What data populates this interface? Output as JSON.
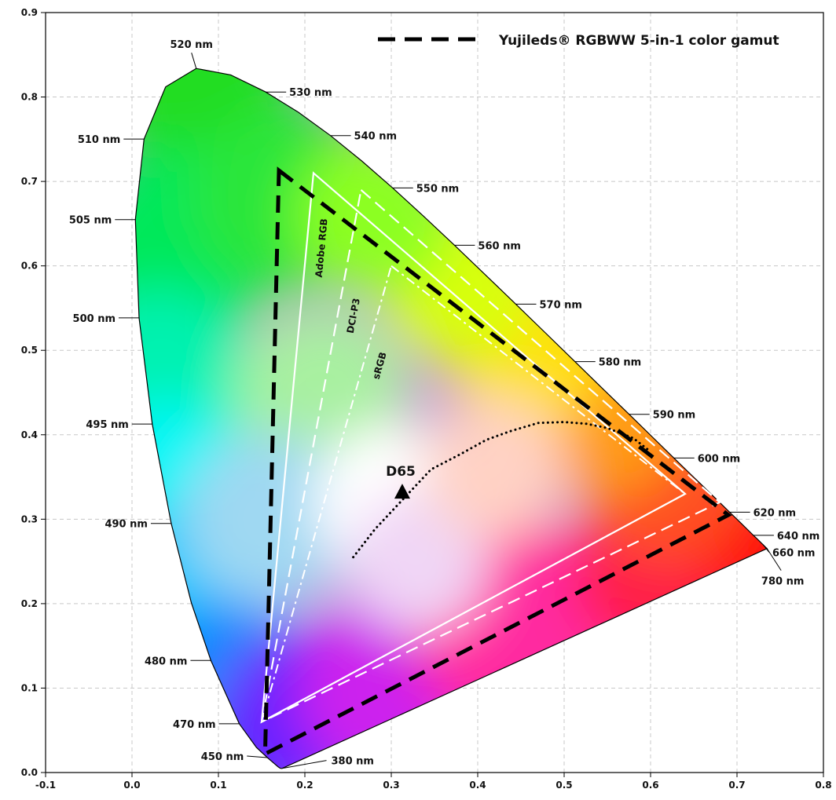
{
  "chart_data": {
    "type": "scatter",
    "title": "",
    "xlabel": "",
    "ylabel": "",
    "xlim": [
      -0.1,
      0.8
    ],
    "ylim": [
      0.0,
      0.9
    ],
    "grid": true,
    "legend_position": "top-right",
    "x_ticks": [
      "-0.1",
      "0.0",
      "0.1",
      "0.2",
      "0.3",
      "0.4",
      "0.5",
      "0.6",
      "0.7",
      "0.8"
    ],
    "y_ticks": [
      "0.0",
      "0.1",
      "0.2",
      "0.3",
      "0.4",
      "0.5",
      "0.6",
      "0.7",
      "0.8",
      "0.9"
    ],
    "legend": {
      "label": "Yujileds® RGBWW 5-in-1 color gamut",
      "line_color": "#000000",
      "line_style": "dashed"
    },
    "spectral_locus": [
      {
        "x": 0.1741,
        "y": 0.005
      },
      {
        "x": 0.1738,
        "y": 0.0049
      },
      {
        "x": 0.1733,
        "y": 0.0048
      },
      {
        "x": 0.1726,
        "y": 0.0048
      },
      {
        "x": 0.1714,
        "y": 0.0051
      },
      {
        "x": 0.1689,
        "y": 0.0069
      },
      {
        "x": 0.1644,
        "y": 0.0109
      },
      {
        "x": 0.1566,
        "y": 0.0177
      },
      {
        "x": 0.144,
        "y": 0.0297
      },
      {
        "x": 0.1241,
        "y": 0.0578
      },
      {
        "x": 0.0913,
        "y": 0.1327
      },
      {
        "x": 0.0687,
        "y": 0.2007
      },
      {
        "x": 0.0454,
        "y": 0.295
      },
      {
        "x": 0.0235,
        "y": 0.4127
      },
      {
        "x": 0.0082,
        "y": 0.5384
      },
      {
        "x": 0.0039,
        "y": 0.6548
      },
      {
        "x": 0.0139,
        "y": 0.7502
      },
      {
        "x": 0.0389,
        "y": 0.812
      },
      {
        "x": 0.0743,
        "y": 0.8338
      },
      {
        "x": 0.1142,
        "y": 0.8262
      },
      {
        "x": 0.1547,
        "y": 0.8059
      },
      {
        "x": 0.1929,
        "y": 0.7816
      },
      {
        "x": 0.2296,
        "y": 0.7543
      },
      {
        "x": 0.2658,
        "y": 0.7243
      },
      {
        "x": 0.3016,
        "y": 0.6923
      },
      {
        "x": 0.3373,
        "y": 0.6589
      },
      {
        "x": 0.3731,
        "y": 0.6245
      },
      {
        "x": 0.4087,
        "y": 0.5896
      },
      {
        "x": 0.4441,
        "y": 0.5547
      },
      {
        "x": 0.4788,
        "y": 0.5202
      },
      {
        "x": 0.5125,
        "y": 0.4866
      },
      {
        "x": 0.5448,
        "y": 0.4544
      },
      {
        "x": 0.5752,
        "y": 0.4242
      },
      {
        "x": 0.6029,
        "y": 0.3965
      },
      {
        "x": 0.627,
        "y": 0.3725
      },
      {
        "x": 0.6482,
        "y": 0.3514
      },
      {
        "x": 0.6658,
        "y": 0.334
      },
      {
        "x": 0.6801,
        "y": 0.3197
      },
      {
        "x": 0.6915,
        "y": 0.3083
      },
      {
        "x": 0.7006,
        "y": 0.2993
      },
      {
        "x": 0.7079,
        "y": 0.292
      },
      {
        "x": 0.714,
        "y": 0.2859
      },
      {
        "x": 0.719,
        "y": 0.2809
      },
      {
        "x": 0.723,
        "y": 0.277
      },
      {
        "x": 0.726,
        "y": 0.274
      },
      {
        "x": 0.7283,
        "y": 0.2717
      },
      {
        "x": 0.73,
        "y": 0.27
      },
      {
        "x": 0.7311,
        "y": 0.2689
      },
      {
        "x": 0.732,
        "y": 0.268
      },
      {
        "x": 0.7327,
        "y": 0.2673
      },
      {
        "x": 0.7334,
        "y": 0.2666
      },
      {
        "x": 0.734,
        "y": 0.266
      },
      {
        "x": 0.7344,
        "y": 0.2656
      },
      {
        "x": 0.7346,
        "y": 0.2654
      },
      {
        "x": 0.7347,
        "y": 0.2653
      }
    ],
    "wavelength_labels": [
      {
        "label": "380 nm",
        "x": 0.1741,
        "y": 0.005,
        "side": "right"
      },
      {
        "label": "450 nm",
        "x": 0.1566,
        "y": 0.0177,
        "side": "left"
      },
      {
        "label": "470 nm",
        "x": 0.1241,
        "y": 0.0578,
        "side": "left"
      },
      {
        "label": "480 nm",
        "x": 0.0913,
        "y": 0.1327,
        "side": "left"
      },
      {
        "label": "490 nm",
        "x": 0.0454,
        "y": 0.295,
        "side": "left"
      },
      {
        "label": "495 nm",
        "x": 0.0235,
        "y": 0.4127,
        "side": "left"
      },
      {
        "label": "500 nm",
        "x": 0.0082,
        "y": 0.5384,
        "side": "left"
      },
      {
        "label": "505 nm",
        "x": 0.0039,
        "y": 0.6548,
        "side": "left"
      },
      {
        "label": "510 nm",
        "x": 0.0139,
        "y": 0.7502,
        "side": "left"
      },
      {
        "label": "520 nm",
        "x": 0.0743,
        "y": 0.8338,
        "side": "top"
      },
      {
        "label": "530 nm",
        "x": 0.1547,
        "y": 0.8059,
        "side": "right"
      },
      {
        "label": "540 nm",
        "x": 0.2296,
        "y": 0.7543,
        "side": "right"
      },
      {
        "label": "550 nm",
        "x": 0.3016,
        "y": 0.6923,
        "side": "right"
      },
      {
        "label": "560 nm",
        "x": 0.3731,
        "y": 0.6245,
        "side": "right"
      },
      {
        "label": "570 nm",
        "x": 0.4441,
        "y": 0.5547,
        "side": "right"
      },
      {
        "label": "580 nm",
        "x": 0.5125,
        "y": 0.4866,
        "side": "right"
      },
      {
        "label": "590 nm",
        "x": 0.5752,
        "y": 0.4242,
        "side": "right"
      },
      {
        "label": "600 nm",
        "x": 0.627,
        "y": 0.3725,
        "side": "right"
      },
      {
        "label": "620 nm",
        "x": 0.6915,
        "y": 0.3083,
        "side": "right"
      },
      {
        "label": "640 nm",
        "x": 0.719,
        "y": 0.2809,
        "side": "right"
      },
      {
        "label": "660 nm",
        "x": 0.73,
        "y": 0.27,
        "side": "right"
      },
      {
        "label": "780 nm",
        "x": 0.7347,
        "y": 0.2653,
        "side": "bottom"
      }
    ],
    "gamuts": [
      {
        "name": "Yujileds® RGBWW 5-in-1 color gamut",
        "label": "",
        "style": "dashed-black",
        "points": [
          [
            0.17,
            0.713
          ],
          [
            0.69,
            0.305
          ],
          [
            0.154,
            0.022
          ]
        ]
      },
      {
        "name": "Adobe RGB",
        "label": "Adobe RGB",
        "style": "solid-white",
        "points": [
          [
            0.21,
            0.71
          ],
          [
            0.64,
            0.33
          ],
          [
            0.15,
            0.06
          ]
        ]
      },
      {
        "name": "DCI-P3",
        "label": "DCI-P3",
        "style": "dashed-white",
        "points": [
          [
            0.265,
            0.69
          ],
          [
            0.68,
            0.32
          ],
          [
            0.15,
            0.06
          ]
        ]
      },
      {
        "name": "sRGB",
        "label": "sRGB",
        "style": "dashdot-white",
        "points": [
          [
            0.3,
            0.6
          ],
          [
            0.64,
            0.33
          ],
          [
            0.15,
            0.06
          ]
        ]
      }
    ],
    "planckian_locus": [
      [
        0.256,
        0.255
      ],
      [
        0.281,
        0.288
      ],
      [
        0.313,
        0.323
      ],
      [
        0.346,
        0.359
      ],
      [
        0.38,
        0.377
      ],
      [
        0.41,
        0.394
      ],
      [
        0.437,
        0.404
      ],
      [
        0.47,
        0.414
      ],
      [
        0.5,
        0.415
      ],
      [
        0.526,
        0.413
      ],
      [
        0.55,
        0.408
      ],
      [
        0.58,
        0.396
      ],
      [
        0.6,
        0.38
      ]
    ],
    "white_point": {
      "label": "D65",
      "x": 0.3127,
      "y": 0.329
    }
  }
}
